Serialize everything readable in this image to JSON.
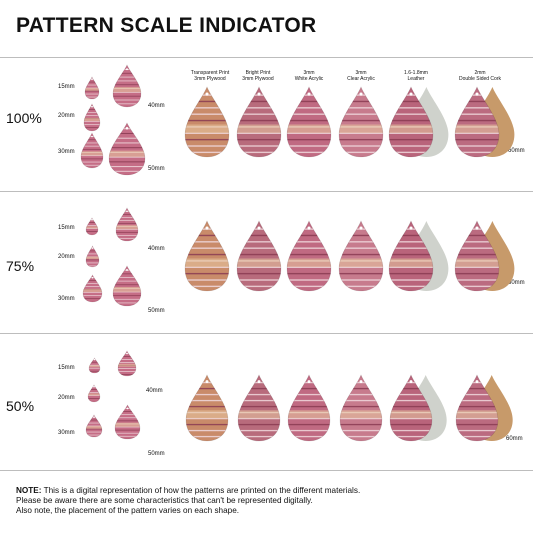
{
  "title": "PATTERN SCALE INDICATOR",
  "materials": [
    {
      "label_line1": "Transparent Print",
      "label_line2": "3mm Plywood",
      "base": "#c98b6a"
    },
    {
      "label_line1": "Bright Print",
      "label_line2": "3mm Plywood",
      "base": "#b86b7c"
    },
    {
      "label_line1": "3mm",
      "label_line2": "White Acrylic",
      "base": "#c06a82"
    },
    {
      "label_line1": "3mm",
      "label_line2": "Clear Acrylic",
      "base": "#c77b8d"
    },
    {
      "label_line1": "1.6-1.8mm",
      "label_line2": "Leather",
      "base": "#b9647b",
      "backing": "#cfd2cc"
    },
    {
      "label_line1": "2mm",
      "label_line2": "Double Sided Cork",
      "base": "#bb6b80",
      "backing": "#c79a6a"
    }
  ],
  "sizes": [
    "15mm",
    "20mm",
    "30mm",
    "40mm",
    "50mm",
    "60mm"
  ],
  "sections": [
    {
      "scale": "100%"
    },
    {
      "scale": "75%"
    },
    {
      "scale": "50%"
    }
  ],
  "note": {
    "prefix": "NOTE:",
    "line1": " This is a digital representation of how the patterns are printed on the different materials.",
    "line2": "Please be aware there are some characteristics that can't be represented digitally.",
    "line3": "Also note, the placement of the pattern varies on each shape."
  },
  "colors": {
    "pattern_pink": "#c56d86",
    "pattern_light": "#f0d8dd",
    "pattern_dark": "#8a3b52",
    "accent_gold": "#e7c9a0"
  }
}
